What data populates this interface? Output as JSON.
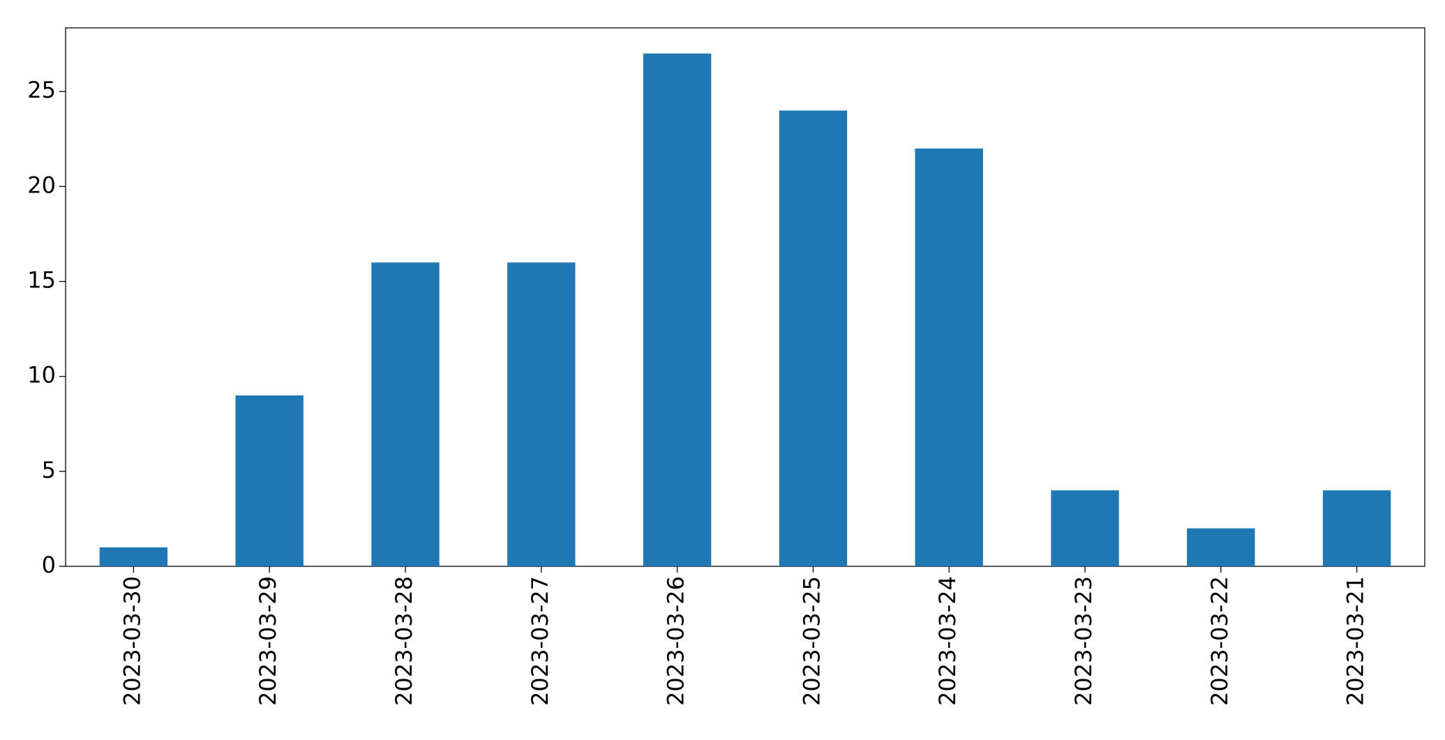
{
  "chart_data": {
    "type": "bar",
    "categories": [
      "2023-03-30",
      "2023-03-29",
      "2023-03-28",
      "2023-03-27",
      "2023-03-26",
      "2023-03-25",
      "2023-03-24",
      "2023-03-23",
      "2023-03-22",
      "2023-03-21"
    ],
    "values": [
      1,
      9,
      16,
      16,
      27,
      24,
      22,
      4,
      2,
      4
    ],
    "color": "#1f77b4",
    "ylim": [
      0,
      28.35
    ],
    "yticks": [
      0,
      5,
      10,
      15,
      20,
      25
    ],
    "grid": false
  }
}
